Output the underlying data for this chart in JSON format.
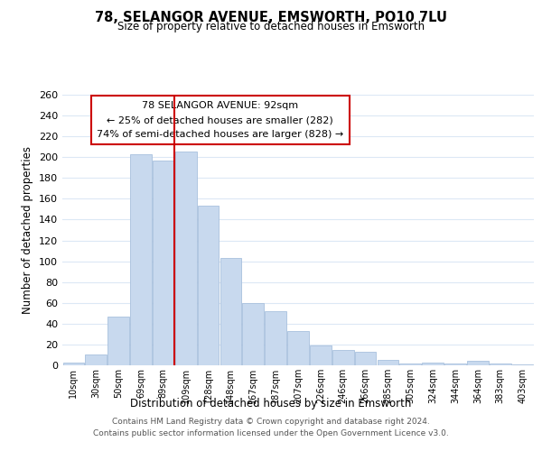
{
  "title": "78, SELANGOR AVENUE, EMSWORTH, PO10 7LU",
  "subtitle": "Size of property relative to detached houses in Emsworth",
  "xlabel": "Distribution of detached houses by size in Emsworth",
  "ylabel": "Number of detached properties",
  "bar_labels": [
    "10sqm",
    "30sqm",
    "50sqm",
    "69sqm",
    "89sqm",
    "109sqm",
    "128sqm",
    "148sqm",
    "167sqm",
    "187sqm",
    "207sqm",
    "226sqm",
    "246sqm",
    "266sqm",
    "285sqm",
    "305sqm",
    "324sqm",
    "344sqm",
    "364sqm",
    "383sqm",
    "403sqm"
  ],
  "bar_values": [
    3,
    10,
    47,
    203,
    197,
    205,
    153,
    103,
    60,
    52,
    33,
    19,
    15,
    13,
    5,
    2,
    3,
    2,
    4,
    2,
    1
  ],
  "bar_color": "#c8d9ee",
  "bar_edge_color": "#a8c0dd",
  "highlight_line_color": "#cc0000",
  "annotation_title": "78 SELANGOR AVENUE: 92sqm",
  "annotation_line1": "← 25% of detached houses are smaller (282)",
  "annotation_line2": "74% of semi-detached houses are larger (828) →",
  "annotation_box_color": "#ffffff",
  "annotation_box_edge": "#cc0000",
  "ylim": [
    0,
    260
  ],
  "yticks": [
    0,
    20,
    40,
    60,
    80,
    100,
    120,
    140,
    160,
    180,
    200,
    220,
    240,
    260
  ],
  "footer_line1": "Contains HM Land Registry data © Crown copyright and database right 2024.",
  "footer_line2": "Contains public sector information licensed under the Open Government Licence v3.0.",
  "bg_color": "#ffffff",
  "grid_color": "#dce8f5"
}
